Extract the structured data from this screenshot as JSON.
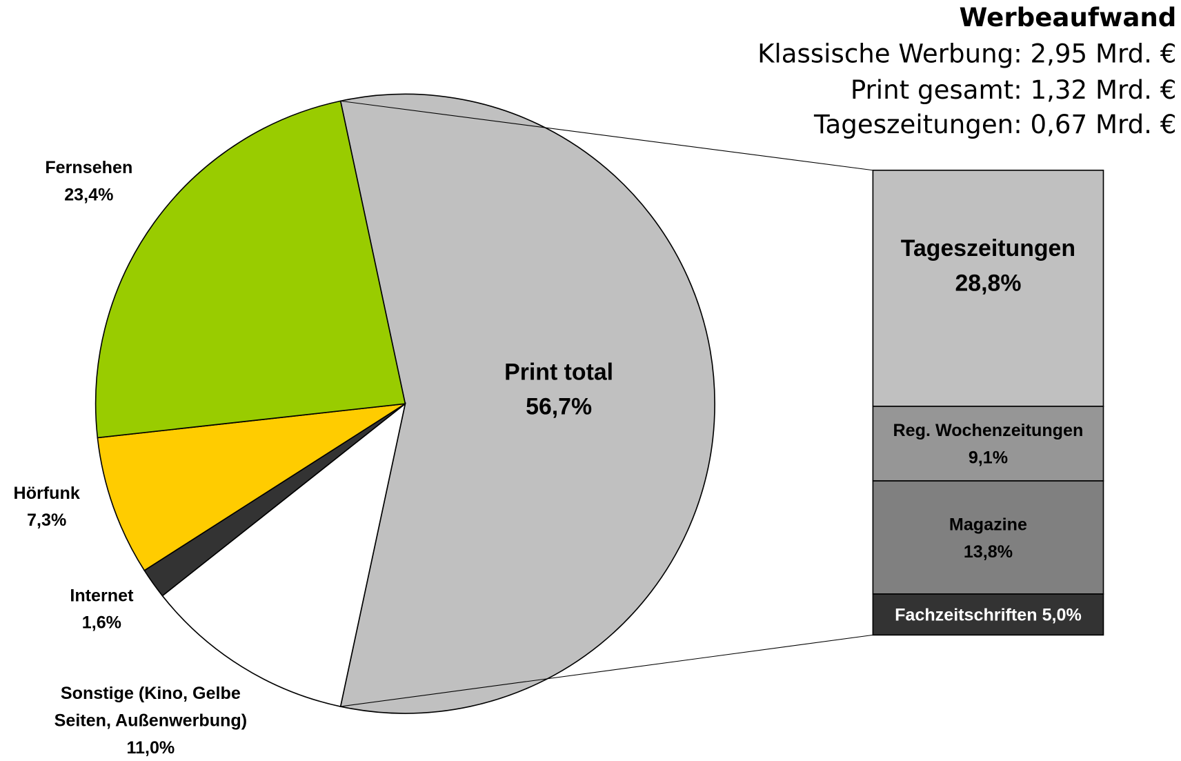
{
  "chart_data": {
    "type": "pie",
    "title": "Werbeaufwand",
    "annotations": [
      "Klassische Werbung: 2,95 Mrd. €",
      "Print gesamt: 1,32 Mrd. €",
      "Tageszeitungen: 0,67 Mrd. €"
    ],
    "categories": [
      "Print total",
      "Sonstige (Kino, Gelbe Seiten, Außenwerbung)",
      "Internet",
      "Hörfunk",
      "Fernsehen"
    ],
    "values": [
      56.7,
      11.0,
      1.6,
      7.3,
      23.4
    ],
    "value_labels": [
      "56,7%",
      "11,0%",
      "1,6%",
      "7,3%",
      "23,4%"
    ],
    "colors": [
      "#c0c0c0",
      "#ffffff",
      "#333333",
      "#ffcc00",
      "#99cc00"
    ],
    "breakout": {
      "categories": [
        "Tageszeitungen",
        "Reg. Wochenzeitungen",
        "Magazine",
        "Fachzeitschriften"
      ],
      "values": [
        28.8,
        9.1,
        13.8,
        5.0
      ],
      "value_labels": [
        "28,8%",
        "9,1%",
        "13,8%",
        "5,0%"
      ],
      "colors": [
        "#c0c0c0",
        "#969696",
        "#808080",
        "#333333"
      ]
    }
  }
}
